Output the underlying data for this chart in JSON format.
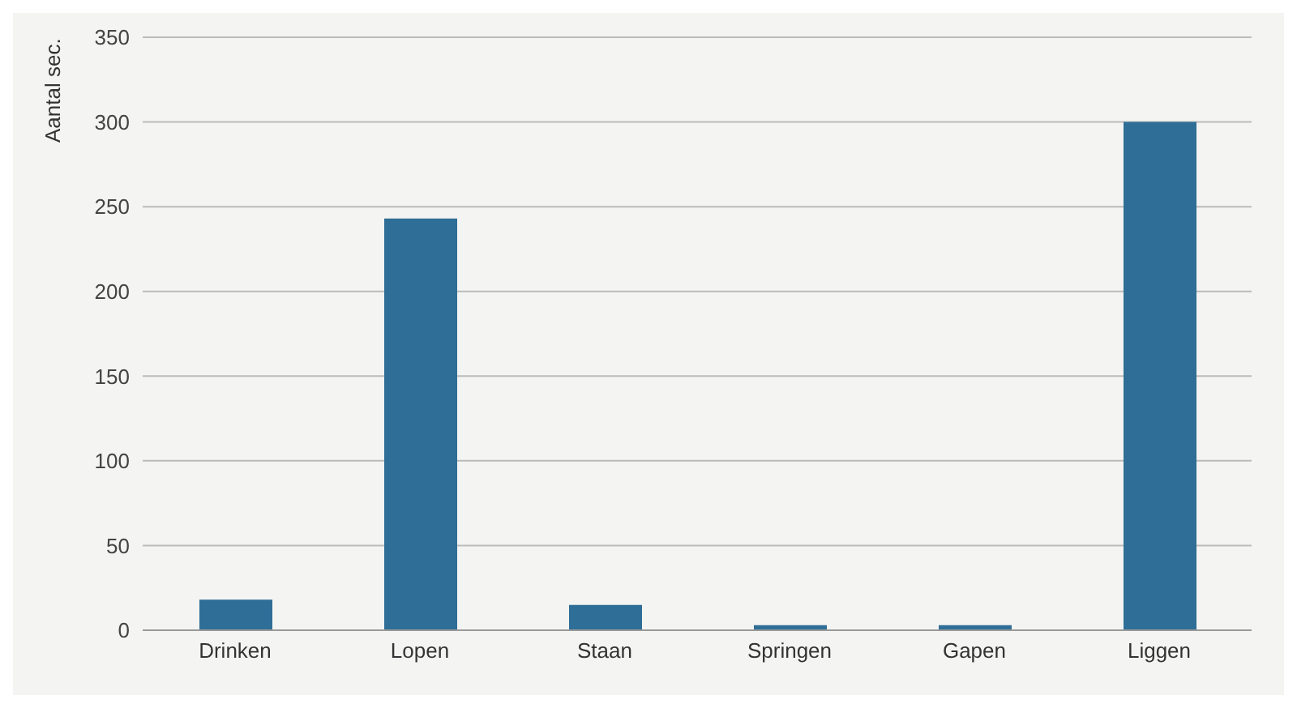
{
  "chart_data": {
    "type": "bar",
    "ylabel": "Aantal sec.",
    "categories": [
      "Drinken",
      "Lopen",
      "Staan",
      "Springen",
      "Gapen",
      "Liggen"
    ],
    "values": [
      18,
      243,
      15,
      3,
      3,
      300
    ],
    "color": "#2f6e96",
    "ylim": [
      0,
      350
    ],
    "yticks": [
      0,
      50,
      100,
      150,
      200,
      250,
      300,
      350
    ],
    "grid": "y",
    "legend": false
  }
}
